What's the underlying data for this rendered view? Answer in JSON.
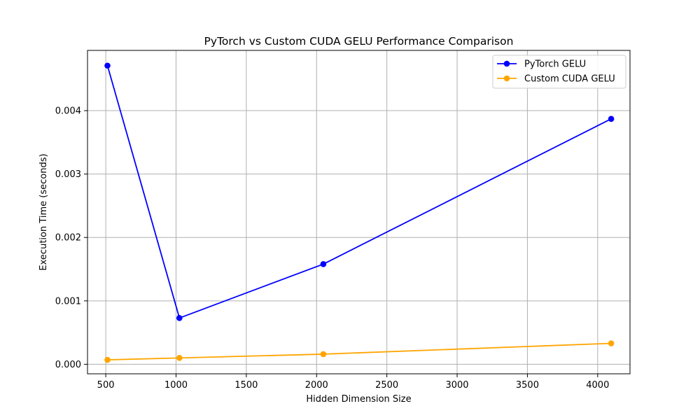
{
  "chart_data": {
    "type": "line",
    "title": "PyTorch vs Custom CUDA GELU Performance Comparison",
    "xlabel": "Hidden Dimension Size",
    "ylabel": "Execution Time (seconds)",
    "xlim": [
      370,
      4230
    ],
    "ylim": [
      -0.00015,
      0.00495
    ],
    "xticks": [
      500,
      1000,
      1500,
      2000,
      2500,
      3000,
      3500,
      4000
    ],
    "yticks": [
      0.0,
      0.001,
      0.002,
      0.003,
      0.004
    ],
    "xtick_labels": [
      "500",
      "1000",
      "1500",
      "2000",
      "2500",
      "3000",
      "3500",
      "4000"
    ],
    "ytick_labels": [
      "0.000",
      "0.001",
      "0.002",
      "0.003",
      "0.004"
    ],
    "grid": true,
    "legend_position": "upper-right",
    "x": [
      512,
      1024,
      2048,
      4096
    ],
    "series": [
      {
        "name": "PyTorch GELU",
        "color": "#0000ff",
        "values": [
          0.00471,
          0.00073,
          0.00158,
          0.00387
        ]
      },
      {
        "name": "Custom CUDA GELU",
        "color": "#ffa500",
        "values": [
          7e-05,
          0.0001,
          0.00016,
          0.00033
        ]
      }
    ]
  }
}
